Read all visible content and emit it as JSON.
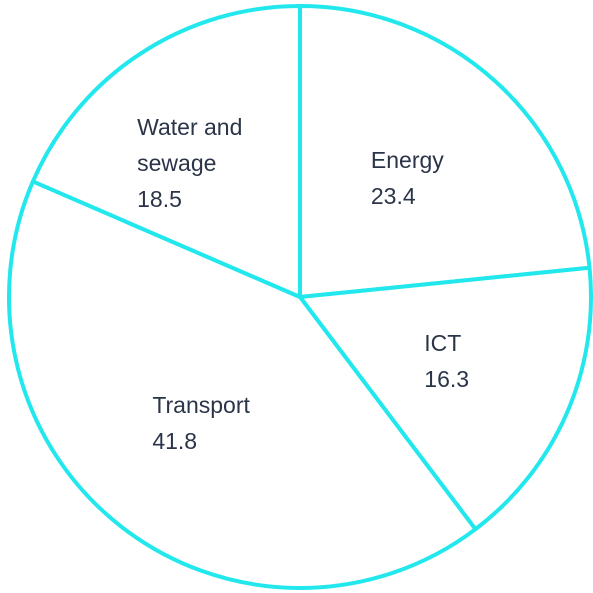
{
  "chart_data": {
    "type": "pie",
    "categories": [
      "Energy",
      "ICT",
      "Transport",
      "Water and sewage"
    ],
    "values": [
      23.4,
      16.3,
      41.8,
      18.5
    ],
    "color": "#22e8ee"
  }
}
